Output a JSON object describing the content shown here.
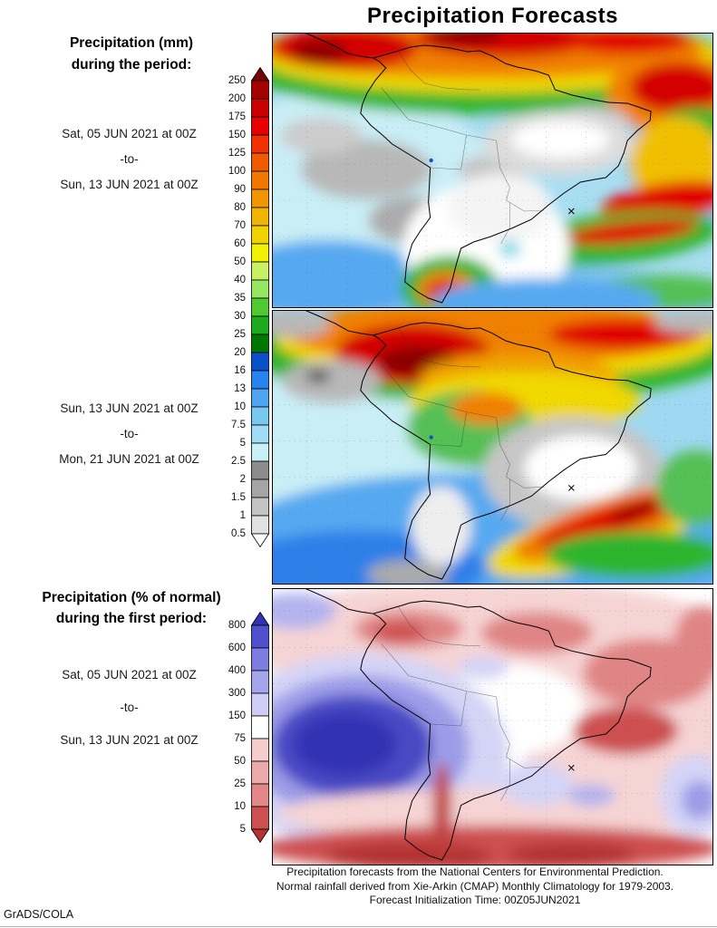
{
  "title": "Precipitation Forecasts",
  "credit": "GrADS/COLA",
  "left_panel": {
    "mm_heading_line1": "Precipitation (mm)",
    "mm_heading_line2": "during the period:",
    "pct_heading_line1": "Precipitation (% of normal)",
    "pct_heading_line2": "during the first period:",
    "period1": {
      "start": "Sat, 05 JUN 2021 at 00Z",
      "sep": "-to-",
      "end": "Sun, 13 JUN 2021 at 00Z"
    },
    "period2": {
      "start": "Sun, 13 JUN 2021 at 00Z",
      "sep": "-to-",
      "end": "Mon, 21 JUN 2021 at 00Z"
    },
    "period3": {
      "start": "Sat, 05 JUN 2021 at 00Z",
      "sep": "-to-",
      "end": "Sun, 13 JUN 2021 at 00Z"
    }
  },
  "footer": {
    "line1": "Precipitation forecasts from the National Centers for Environmental Prediction.",
    "line2": "Normal rainfall derived from Xie-Arkin (CMAP) Monthly Climatology for 1979-2003.",
    "line3": "Forecast Initialization Time: 00Z05JUN2021"
  },
  "chart_data": [
    {
      "type": "heatmap",
      "title": "Precipitation (mm) during the period Sat 05 JUN 2021 00Z to Sun 13 JUN 2021 00Z",
      "units": "mm",
      "region": "South America and adjacent Pacific/Atlantic oceans",
      "legend_position": "left",
      "colorbar": {
        "labels": [
          "250",
          "200",
          "175",
          "150",
          "125",
          "100",
          "90",
          "80",
          "70",
          "60",
          "50",
          "40",
          "35",
          "30",
          "25",
          "20",
          "16",
          "13",
          "10",
          "7.5",
          "5",
          "2.5",
          "2",
          "1.5",
          "1",
          "0.5"
        ],
        "colors": [
          "#780000",
          "#a50000",
          "#c80000",
          "#e60000",
          "#f03200",
          "#f05a00",
          "#f07800",
          "#f09600",
          "#f0b400",
          "#f0d200",
          "#f0f000",
          "#c8f064",
          "#96e664",
          "#50c832",
          "#1eaa1e",
          "#007800",
          "#0a50c8",
          "#2882f0",
          "#50a5f0",
          "#78c8f0",
          "#a0dcf5",
          "#c8f0f5",
          "#8c8c8c",
          "#a5a5a5",
          "#c3c3c3",
          "#e1e1e1",
          "#ffffff"
        ]
      },
      "description": "Heavy ITCZ rain band (100-250+ mm) across the far north and tropical Atlantic; red maximum on the right (Atlantic) edge; gray 0.5-2.5 mm patches over the eastern Pacific and interior eastern Brazil; white (<0.5 mm) dry zone over Bolivia/Paraguay/central Argentina; 100+ mm rain streak off southeast Brazil; heavy-rain bullseye on the central Chile coast."
    },
    {
      "type": "heatmap",
      "title": "Precipitation (mm) during the period Sun 13 JUN 2021 00Z to Mon 21 JUN 2021 00Z",
      "units": "mm",
      "region": "South America and adjacent Pacific/Atlantic oceans",
      "legend_position": "left",
      "colorbar": {
        "labels": [
          "250",
          "200",
          "175",
          "150",
          "125",
          "100",
          "90",
          "80",
          "70",
          "60",
          "50",
          "40",
          "35",
          "30",
          "25",
          "20",
          "16",
          "13",
          "10",
          "7.5",
          "5",
          "2.5",
          "2",
          "1.5",
          "1",
          "0.5"
        ],
        "colors": [
          "#780000",
          "#a50000",
          "#c80000",
          "#e60000",
          "#f03200",
          "#f05a00",
          "#f07800",
          "#f09600",
          "#f0b400",
          "#f0d200",
          "#f0f000",
          "#c8f064",
          "#96e664",
          "#50c832",
          "#1eaa1e",
          "#007800",
          "#0a50c8",
          "#2882f0",
          "#50a5f0",
          "#78c8f0",
          "#a0dcf5",
          "#c8f0f5",
          "#8c8c8c",
          "#a5a5a5",
          "#c3c3c3",
          "#e1e1e1",
          "#ffffff"
        ]
      },
      "description": "Very heavy rain (150-250+ mm) over Colombia/Venezuela and along the ITCZ; orange-yellow 60-125 mm over northern Brazil; large gray/white dry blob over interior eastern Brazil; 100-175 mm diagonal rain streak over southern Brazil; widespread 5-20 mm blues over the southern oceans."
    },
    {
      "type": "heatmap",
      "title": "Precipitation (% of normal) during the first period Sat 05 JUN 2021 00Z to Sun 13 JUN 2021 00Z",
      "units": "% of normal",
      "region": "South America and adjacent Pacific/Atlantic oceans",
      "legend_position": "left",
      "colorbar": {
        "labels": [
          "800",
          "600",
          "400",
          "300",
          "150",
          "75",
          "50",
          "25",
          "10",
          "5"
        ],
        "colors": [
          "#3232b4",
          "#5050cd",
          "#7d7de1",
          "#a5a5eb",
          "#cdcdf5",
          "#ffffff",
          "#f5cdcd",
          "#ebaaaa",
          "#e18787",
          "#cd5050",
          "#b43232"
        ],
        "normal_band": "75-150"
      },
      "description": "Much above normal (300 to >800%) blue/purple maximum over the subtropical southeast Pacific; below normal (5-75%) pink/red over much of Brazil, the northeast coast, and a strong red band across the far south and southern Andes; near-normal white over the central Amazon and mid-latitude oceans."
    }
  ]
}
